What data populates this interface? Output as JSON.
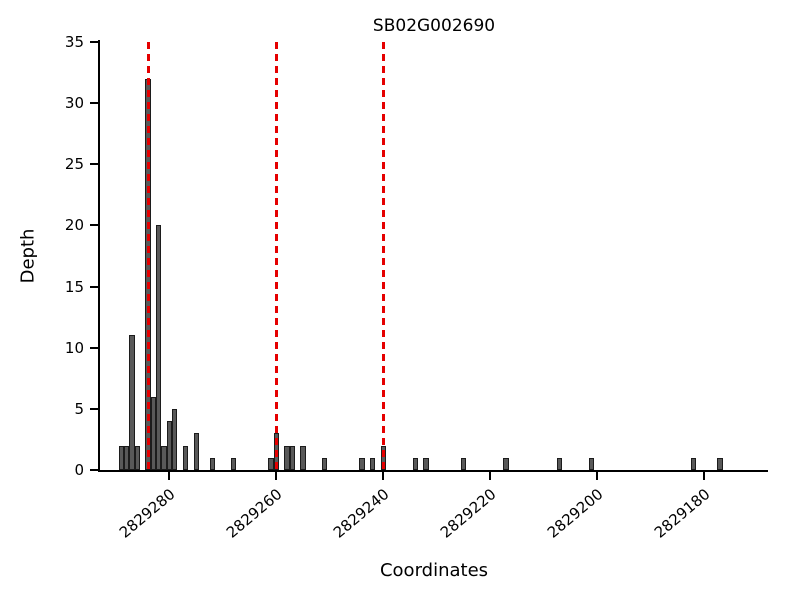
{
  "chart_data": {
    "type": "bar",
    "title": "SB02G002690",
    "xlabel": "Coordinates",
    "ylabel": "Depth",
    "x_axis_descending": true,
    "xlim": [
      2829293,
      2829168
    ],
    "ylim": [
      0,
      35
    ],
    "xticks": [
      2829280,
      2829260,
      2829240,
      2829220,
      2829200,
      2829180
    ],
    "yticks": [
      0,
      5,
      10,
      15,
      20,
      25,
      30,
      35
    ],
    "bar_width": 1,
    "bars": [
      {
        "x": 2829289,
        "y": 2
      },
      {
        "x": 2829288,
        "y": 2
      },
      {
        "x": 2829287,
        "y": 11
      },
      {
        "x": 2829286,
        "y": 2
      },
      {
        "x": 2829284,
        "y": 32
      },
      {
        "x": 2829283,
        "y": 6
      },
      {
        "x": 2829282,
        "y": 20
      },
      {
        "x": 2829281,
        "y": 2
      },
      {
        "x": 2829280,
        "y": 4
      },
      {
        "x": 2829279,
        "y": 5
      },
      {
        "x": 2829277,
        "y": 2
      },
      {
        "x": 2829275,
        "y": 3
      },
      {
        "x": 2829272,
        "y": 1
      },
      {
        "x": 2829268,
        "y": 1
      },
      {
        "x": 2829261,
        "y": 1
      },
      {
        "x": 2829260,
        "y": 3
      },
      {
        "x": 2829258,
        "y": 2
      },
      {
        "x": 2829257,
        "y": 2
      },
      {
        "x": 2829255,
        "y": 2
      },
      {
        "x": 2829251,
        "y": 1
      },
      {
        "x": 2829244,
        "y": 1
      },
      {
        "x": 2829242,
        "y": 1
      },
      {
        "x": 2829240,
        "y": 2
      },
      {
        "x": 2829234,
        "y": 1
      },
      {
        "x": 2829232,
        "y": 1
      },
      {
        "x": 2829225,
        "y": 1
      },
      {
        "x": 2829217,
        "y": 1
      },
      {
        "x": 2829207,
        "y": 1
      },
      {
        "x": 2829201,
        "y": 1
      },
      {
        "x": 2829182,
        "y": 1
      },
      {
        "x": 2829177,
        "y": 1
      }
    ],
    "vlines": [
      2829284,
      2829260,
      2829240
    ],
    "colors": {
      "bar_fill": "#595959",
      "bar_edge": "#1c1c1c",
      "vline": "#e50000",
      "axis": "#000000",
      "background": "#ffffff"
    }
  }
}
